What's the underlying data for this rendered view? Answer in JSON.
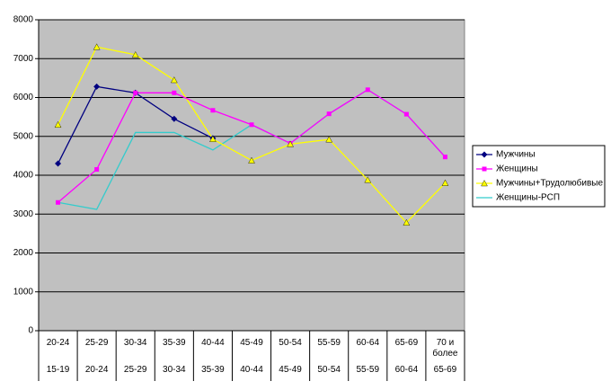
{
  "chart_data": {
    "type": "line",
    "categories": [
      "20-24",
      "25-29",
      "30-34",
      "35-39",
      "40-44",
      "45-49",
      "50-54",
      "55-59",
      "60-64",
      "65-69",
      "70 и более"
    ],
    "categories_outer": [
      "15-19",
      "20-24",
      "25-29",
      "30-34",
      "35-39",
      "40-44",
      "45-49",
      "50-54",
      "55-59",
      "60-64",
      "65-69"
    ],
    "series": [
      {
        "name": "Мужчины",
        "color": "#000080",
        "marker": "diamond",
        "values": [
          4300,
          6280,
          6120,
          5450,
          4950,
          null,
          null,
          null,
          null,
          null,
          null
        ]
      },
      {
        "name": "Женщины",
        "color": "#ff00ff",
        "marker": "square",
        "values": [
          3300,
          4150,
          6120,
          6120,
          5670,
          5300,
          4820,
          5580,
          6200,
          5570,
          4470
        ]
      },
      {
        "name": "Мужчины+Трудолюбивые",
        "color": "#ffff00",
        "marker": "triangle",
        "values": [
          5300,
          7300,
          7100,
          6450,
          4930,
          4380,
          4800,
          4920,
          3880,
          2780,
          3800
        ]
      },
      {
        "name": "Женщины-РСП",
        "color": "#33cccc",
        "marker": "none",
        "values": [
          3300,
          3120,
          5100,
          5100,
          4650,
          5300,
          4820,
          5580,
          6200,
          5570,
          4470
        ]
      }
    ],
    "ylim": [
      0,
      8000
    ],
    "yticks": [
      0,
      1000,
      2000,
      3000,
      4000,
      5000,
      6000,
      7000,
      8000
    ],
    "grid": true,
    "plot_background": "#c0c0c0",
    "legend": "right"
  }
}
